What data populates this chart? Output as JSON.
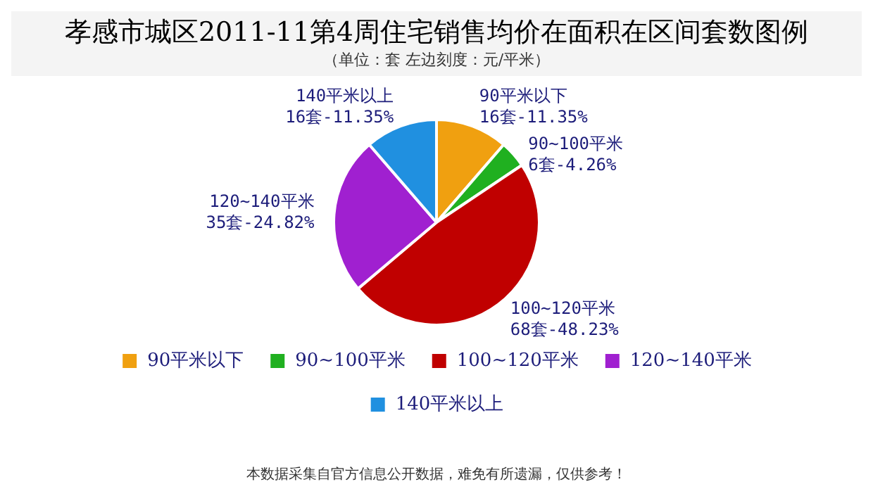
{
  "chart_data": {
    "type": "pie",
    "title": "孝感市城区2011-11第4周住宅销售均价在面积在区间套数图例",
    "subtitle": "（单位：套 左边刻度：元/平米）",
    "categories": [
      "90平米以下",
      "90~100平米",
      "100~120平米",
      "120~140平米",
      "140平米以上"
    ],
    "values": [
      16,
      6,
      68,
      35,
      16
    ],
    "colors": [
      "#f0a010",
      "#20b020",
      "#c00000",
      "#a020d0",
      "#2090e0"
    ],
    "data_labels": true,
    "value_labels": [
      "16套-11.35%",
      "6套-4.26%",
      "68套-48.23%",
      "35套-24.82%",
      "16套-11.35%"
    ],
    "legend": "bottom",
    "annotations": [
      "本数据采集自官方信息公开数据，难免有所遗漏，仅供参考！"
    ]
  }
}
